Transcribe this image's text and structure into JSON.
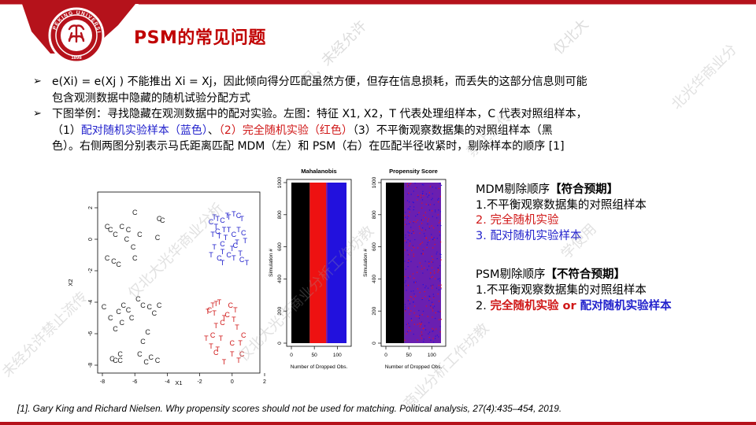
{
  "title": "PSM的常见问题",
  "bullets": {
    "b1_line1": "e(Xi) = e(Xj ) 不能推出 Xi = Xj，因此倾向得分匹配虽然方便，但存在信息损耗，而丢失的这部分信息则可能",
    "b1_line2": "包含观测数据中隐藏的随机试验分配方式",
    "b2_line1": "下图举例：寻找隐藏在观测数据中的配对实验。左图：特征 X1, X2，T 代表处理组样本，C 代表对照组样本，",
    "b2_line2_a": "（1）",
    "b2_line2_b": "配对随机实验样本（蓝色）",
    "b2_line2_c": "、",
    "b2_line2_d": "（2）完全随机实验（红色）",
    "b2_line2_e": "（3）不平衡观察数据集的对照组样本（黑",
    "b2_line3": "色）。右侧两图分别表示马氏距离匹配 MDM（左）和 PSM（右）在匹配半径收紧时，剔除样本的顺序 [1]"
  },
  "right_panel": {
    "mdm_head": "MDM剔除顺序",
    "mdm_tag": "【符合预期】",
    "mdm_1": "1.不平衡观察数据集的对照组样本",
    "mdm_2": "2. 完全随机实验",
    "mdm_3": "3. 配对随机实验样本",
    "psm_head": "PSM剔除顺序",
    "psm_tag": "【不符合预期】",
    "psm_1": "1.不平衡观察数据集的对照组样本",
    "psm_2_a": "2. ",
    "psm_2_b": "完全随机实验",
    "psm_2_c": " or ",
    "psm_2_d": "配对随机实验样本"
  },
  "reference": "[1]. Gary King and Richard Nielsen. Why propensity scores should not be used for matching. Political analysis, 27(4):435–454, 2019.",
  "chart_data": [
    {
      "type": "scatter",
      "xlabel": "X1",
      "ylabel": "X2",
      "xlim": [
        -8,
        2
      ],
      "ylim": [
        -8.5,
        3
      ],
      "x_ticks": [
        "-8",
        "-6",
        "-4",
        "-2",
        "0",
        "2"
      ],
      "y_ticks": [
        "-8",
        "-6",
        "-4",
        "-2",
        "0",
        "2"
      ],
      "series": [
        {
          "label": "C",
          "color": "#222222",
          "points": [
            [
              -7.7,
              0.8
            ],
            [
              -7.5,
              0.6
            ],
            [
              -7.2,
              0.3
            ],
            [
              -6.8,
              0.8
            ],
            [
              -6.0,
              1.7
            ],
            [
              -6.4,
              0.6
            ],
            [
              -6.5,
              0.0
            ],
            [
              -6.1,
              -0.5
            ],
            [
              -5.7,
              0.3
            ],
            [
              -6.0,
              -1.2
            ],
            [
              -7.3,
              -1.4
            ],
            [
              -7.7,
              -1.2
            ],
            [
              -7.0,
              -1.6
            ],
            [
              -4.6,
              0.1
            ],
            [
              -4.5,
              1.3
            ],
            [
              -4.3,
              1.2
            ],
            [
              -7.9,
              -4.3
            ],
            [
              -7.5,
              -5.0
            ],
            [
              -7.0,
              -4.6
            ],
            [
              -6.7,
              -4.2
            ],
            [
              -6.4,
              -4.5
            ],
            [
              -6.2,
              -5.0
            ],
            [
              -5.5,
              -4.2
            ],
            [
              -5.8,
              -3.8
            ],
            [
              -5.1,
              -4.3
            ],
            [
              -4.8,
              -4.7
            ],
            [
              -4.5,
              -4.2
            ],
            [
              -6.8,
              -5.3
            ],
            [
              -7.2,
              -5.7
            ],
            [
              -5.2,
              -5.9
            ],
            [
              -5.5,
              -6.5
            ],
            [
              -6.9,
              -7.3
            ],
            [
              -7.4,
              -7.6
            ],
            [
              -6.9,
              -7.7
            ],
            [
              -7.2,
              -7.7
            ],
            [
              -5.7,
              -7.3
            ],
            [
              -5.3,
              -7.8
            ],
            [
              -4.6,
              -7.7
            ],
            [
              -5.0,
              -7.5
            ]
          ]
        },
        {
          "label": "T",
          "color": "#2222cc",
          "points": [
            [
              -1.1,
              1.4
            ],
            [
              -0.9,
              1.3
            ],
            [
              -0.3,
              1.5
            ],
            [
              -0.2,
              1.4
            ],
            [
              0.1,
              1.6
            ],
            [
              0.6,
              1.3
            ],
            [
              -1.0,
              0.8
            ],
            [
              -0.5,
              0.6
            ],
            [
              -0.2,
              0.6
            ],
            [
              0.4,
              0.6
            ],
            [
              -1.2,
              0.3
            ],
            [
              -0.8,
              0.2
            ],
            [
              -0.4,
              0.1
            ],
            [
              0.3,
              -0.2
            ],
            [
              0.8,
              -0.1
            ],
            [
              -1.1,
              -0.5
            ],
            [
              -0.6,
              -0.8
            ],
            [
              0.0,
              -0.6
            ],
            [
              0.5,
              -0.9
            ],
            [
              -1.3,
              -1.0
            ],
            [
              -0.6,
              -1.5
            ],
            [
              0.1,
              -1.2
            ],
            [
              0.9,
              -1.5
            ]
          ]
        },
        {
          "label": "C",
          "color": "#2222cc",
          "points": [
            [
              -1.3,
              1.1
            ],
            [
              -0.6,
              1.2
            ],
            [
              0.4,
              1.5
            ],
            [
              -0.9,
              0.5
            ],
            [
              0.1,
              0.3
            ],
            [
              0.7,
              0.4
            ],
            [
              -0.6,
              -0.3
            ],
            [
              0.2,
              -0.4
            ],
            [
              -0.8,
              -1.2
            ],
            [
              -0.2,
              -1.0
            ],
            [
              0.6,
              -1.3
            ]
          ]
        },
        {
          "label": "T",
          "color": "#d01818",
          "points": [
            [
              -1.2,
              -4.2
            ],
            [
              -1.0,
              -4.1
            ],
            [
              -0.8,
              -4.0
            ],
            [
              -1.5,
              -4.6
            ],
            [
              -1.1,
              -4.7
            ],
            [
              0.2,
              -4.5
            ],
            [
              -0.5,
              -5.0
            ],
            [
              0.1,
              -5.1
            ],
            [
              -1.0,
              -5.5
            ],
            [
              0.3,
              -5.6
            ],
            [
              -1.6,
              -6.3
            ],
            [
              -0.7,
              -6.3
            ],
            [
              -1.3,
              -6.8
            ],
            [
              0.5,
              -6.6
            ],
            [
              -0.9,
              -7.0
            ],
            [
              0.0,
              -7.3
            ],
            [
              -0.5,
              -7.8
            ],
            [
              0.4,
              -7.7
            ]
          ]
        },
        {
          "label": "C",
          "color": "#d01818",
          "points": [
            [
              -1.4,
              -4.5
            ],
            [
              -0.1,
              -4.2
            ],
            [
              -0.3,
              -4.8
            ],
            [
              -0.6,
              -5.3
            ],
            [
              -1.2,
              -6.1
            ],
            [
              0.7,
              -6.1
            ],
            [
              0.0,
              -6.6
            ],
            [
              -1.0,
              -7.2
            ],
            [
              0.6,
              -7.3
            ]
          ]
        }
      ]
    },
    {
      "type": "heatmap",
      "title": "Mahalanobis",
      "xlabel": "Number of Dropped Obs.",
      "ylabel": "Simulation #",
      "x_ticks": [
        "0",
        "50",
        "100"
      ],
      "y_ticks": [
        "0",
        "200",
        "400",
        "600",
        "800",
        "1000"
      ],
      "bands": [
        {
          "color": "#000000",
          "from": 0,
          "to": 40
        },
        {
          "color": "#ee1111",
          "from": 40,
          "to": 76
        },
        {
          "color": "#2211dd",
          "from": 76,
          "to": 120
        }
      ]
    },
    {
      "type": "heatmap",
      "title": "Propensity Score",
      "xlabel": "Number of Dropped Obs.",
      "ylabel": "Simulation #",
      "x_ticks": [
        "0",
        "50",
        "100"
      ],
      "y_ticks": [
        "0",
        "200",
        "400",
        "600",
        "800",
        "1000"
      ],
      "bands": [
        {
          "color": "#000000",
          "from": 0,
          "to": 40
        },
        {
          "color": "#6a1fb0",
          "from": 40,
          "to": 120
        }
      ]
    }
  ]
}
